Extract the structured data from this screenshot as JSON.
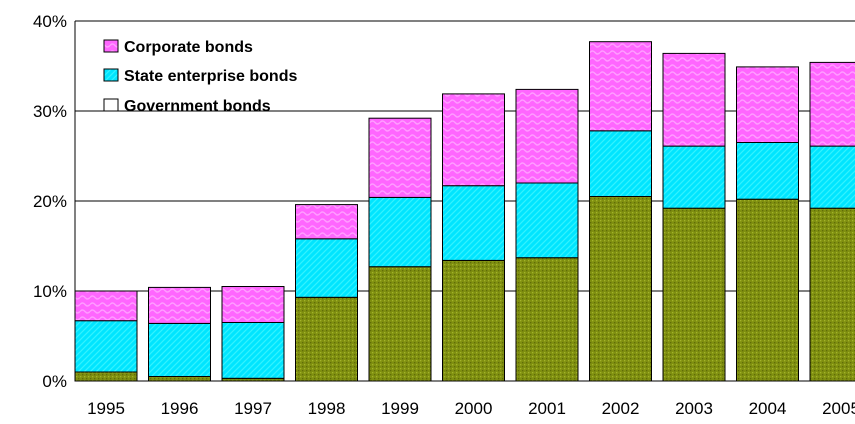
{
  "chart_data": {
    "type": "bar",
    "stacked": true,
    "title": "",
    "xlabel": "",
    "ylabel": "",
    "categories": [
      "1995",
      "1996",
      "1997",
      "1998",
      "1999",
      "2000",
      "2001",
      "2002",
      "2003",
      "2004",
      "2005"
    ],
    "series": [
      {
        "name": "Government bonds",
        "color": "#7f8f10",
        "pattern": "dots",
        "values": [
          1.0,
          0.5,
          0.3,
          9.3,
          12.7,
          13.4,
          13.7,
          20.5,
          19.2,
          20.2,
          19.2
        ]
      },
      {
        "name": "State enterprise bonds",
        "color": "#00e5ff",
        "pattern": "diagonal",
        "values": [
          5.7,
          5.9,
          6.2,
          6.5,
          7.7,
          8.3,
          8.3,
          7.3,
          6.9,
          6.3,
          6.9
        ]
      },
      {
        "name": "Corporate bonds",
        "color": "#ff66ff",
        "pattern": "waves",
        "values": [
          3.3,
          4.0,
          4.0,
          3.8,
          8.8,
          10.2,
          10.4,
          9.9,
          10.3,
          8.4,
          9.3
        ]
      }
    ],
    "ylim": [
      0,
      40
    ],
    "yticks": [
      0,
      10,
      20,
      30,
      40
    ],
    "ytick_labels": [
      "0%",
      "10%",
      "20%",
      "30%",
      "40%"
    ],
    "grid": true,
    "legend": {
      "position": "top-left",
      "order": [
        "Corporate bonds",
        "State enterprise bonds",
        "Government bonds"
      ]
    }
  }
}
